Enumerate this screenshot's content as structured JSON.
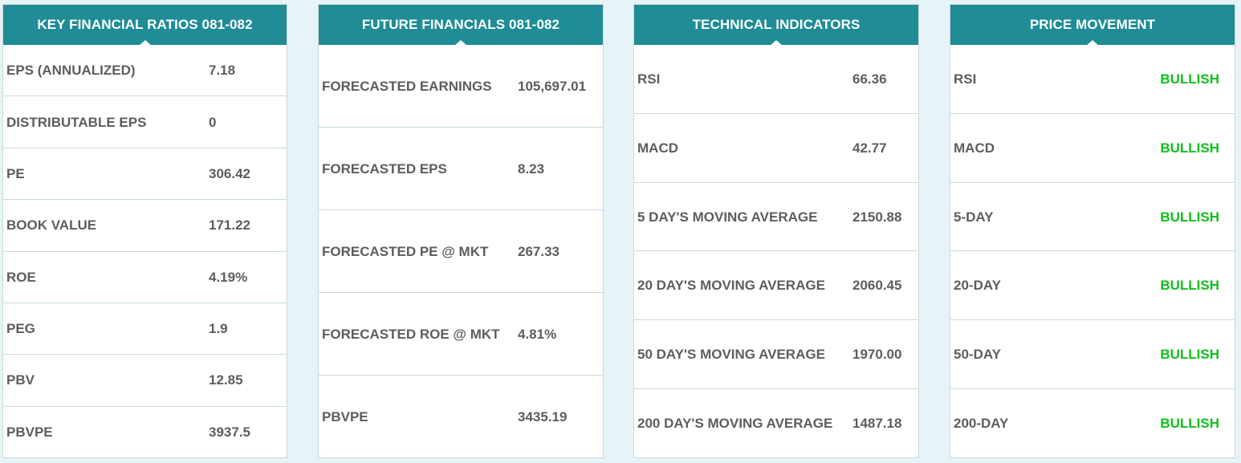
{
  "key_ratios": {
    "title": "KEY FINANCIAL RATIOS 081-082",
    "rows": [
      {
        "label": "EPS (ANNUALIZED)",
        "value": "7.18"
      },
      {
        "label": "DISTRIBUTABLE EPS",
        "value": "0"
      },
      {
        "label": "PE",
        "value": "306.42"
      },
      {
        "label": "BOOK VALUE",
        "value": "171.22"
      },
      {
        "label": "ROE",
        "value": "4.19%"
      },
      {
        "label": "PEG",
        "value": "1.9"
      },
      {
        "label": "PBV",
        "value": "12.85"
      },
      {
        "label": "PBVPE",
        "value": "3937.5"
      }
    ]
  },
  "future_financials": {
    "title": "FUTURE FINANCIALS 081-082",
    "rows": [
      {
        "label": "FORECASTED EARNINGS",
        "value": "105,697.01"
      },
      {
        "label": "FORECASTED EPS",
        "value": "8.23"
      },
      {
        "label": "FORECASTED PE @ MKT",
        "value": "267.33"
      },
      {
        "label": "FORECASTED ROE @ MKT",
        "value": "4.81%"
      },
      {
        "label": "PBVPE",
        "value": "3435.19"
      }
    ]
  },
  "technical_indicators": {
    "title": "TECHNICAL INDICATORS",
    "rows": [
      {
        "label": "RSI",
        "value": "66.36"
      },
      {
        "label": "MACD",
        "value": "42.77"
      },
      {
        "label": "5 DAY'S MOVING AVERAGE",
        "value": "2150.88"
      },
      {
        "label": "20 DAY'S MOVING AVERAGE",
        "value": "2060.45"
      },
      {
        "label": "50 DAY'S MOVING AVERAGE",
        "value": "1970.00"
      },
      {
        "label": "200 DAY'S MOVING AVERAGE",
        "value": "1487.18"
      }
    ]
  },
  "price_movement": {
    "title": "PRICE MOVEMENT",
    "rows": [
      {
        "label": "RSI",
        "value": "BULLISH"
      },
      {
        "label": "MACD",
        "value": "BULLISH"
      },
      {
        "label": "5-DAY",
        "value": "BULLISH"
      },
      {
        "label": "20-DAY",
        "value": "BULLISH"
      },
      {
        "label": "50-DAY",
        "value": "BULLISH"
      },
      {
        "label": "200-DAY",
        "value": "BULLISH"
      }
    ]
  },
  "colors": {
    "header_bg": "#1f8c96",
    "page_bg": "#e6f4f7",
    "label_text": "#5d5d5d",
    "bullish": "#11bf1d"
  }
}
